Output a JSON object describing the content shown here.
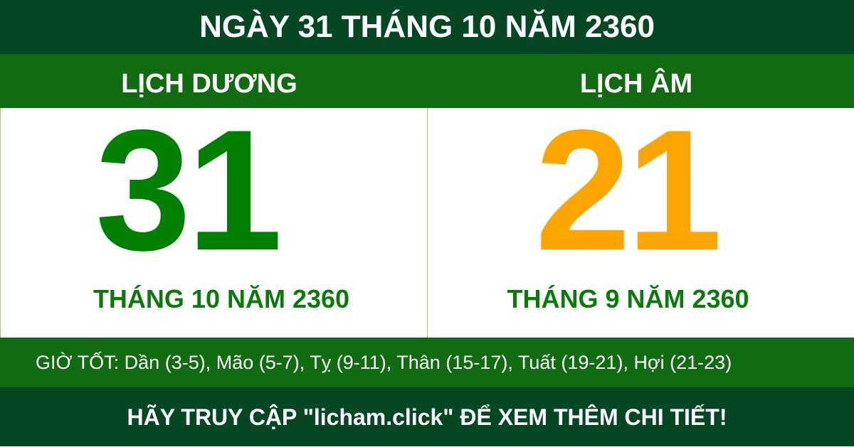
{
  "title": "NGÀY 31 THÁNG 10 NĂM 2360",
  "solar": {
    "label": "LỊCH DƯƠNG",
    "day": "31",
    "month_year": "THÁNG 10 NĂM 2360"
  },
  "lunar": {
    "label": "LỊCH ÂM",
    "day": "21",
    "month_year": "THÁNG 9 NĂM 2360"
  },
  "good_hours": "GIỜ TỐT: Dần (3-5), Mão (5-7), Tỵ (9-11), Thân (15-17), Tuất (19-21), Hợi (21-23)",
  "footer": "HÃY TRUY CẬP \"licham.click\" ĐỂ XEM THÊM CHI TIẾT!",
  "colors": {
    "dark_green": "#044722",
    "green": "#116b10",
    "solar_day": "#008000",
    "lunar_day": "#ffa500"
  }
}
